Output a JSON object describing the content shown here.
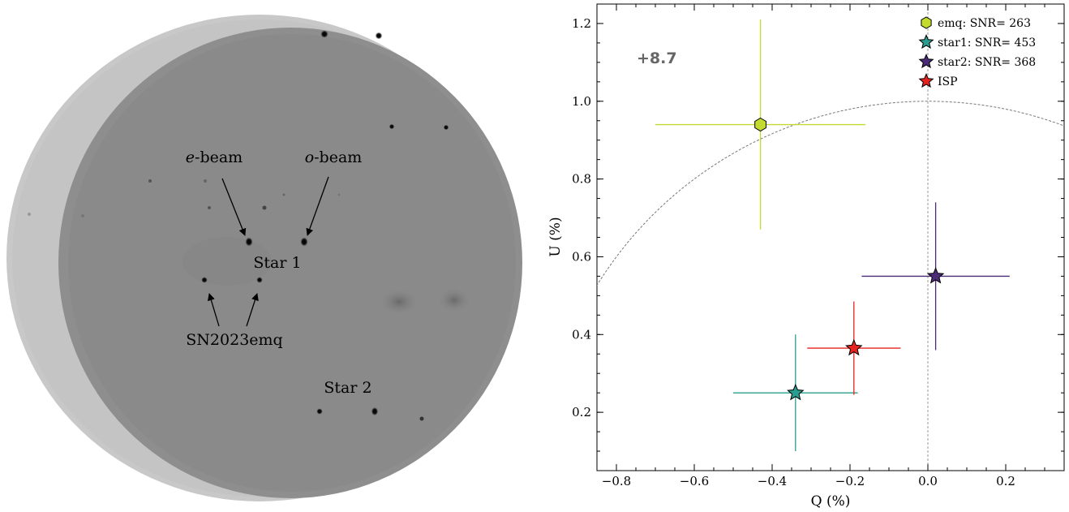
{
  "image_panel": {
    "labels": {
      "e_beam_prefix": "e",
      "e_beam_suffix": "-beam",
      "o_beam_prefix": "o",
      "o_beam_suffix": "-beam",
      "star1": "Star 1",
      "sn": "SN2023emq",
      "star2": "Star 2"
    }
  },
  "chart_data": {
    "type": "scatter",
    "xlabel": "Q (%)",
    "ylabel": "U (%)",
    "xlim": [
      -0.85,
      0.35
    ],
    "ylim": [
      0.05,
      1.25
    ],
    "xticks": [
      -0.8,
      -0.6,
      -0.4,
      -0.2,
      0.0,
      0.2
    ],
    "xtick_labels": [
      "−0.8",
      "−0.6",
      "−0.4",
      "−0.2",
      "0.0",
      "0.2"
    ],
    "yticks": [
      0.2,
      0.4,
      0.6,
      0.8,
      1.0,
      1.2
    ],
    "ytick_labels": [
      "0.2",
      "0.4",
      "0.6",
      "0.8",
      "1.0",
      "1.2"
    ],
    "annotation": "+8.7",
    "grid": false,
    "legend_position": "top-right",
    "reference_circle_radius": 1.0,
    "series": [
      {
        "name": "emq: SNR= 263",
        "marker": "hexagon",
        "color": "#c2db2e",
        "x": -0.43,
        "y": 0.94,
        "xerr": 0.27,
        "yerr": 0.27
      },
      {
        "name": "star1: SNR= 453",
        "marker": "star",
        "color": "#2a9d8f",
        "x": -0.34,
        "y": 0.25,
        "xerr": 0.16,
        "yerr": 0.15
      },
      {
        "name": "star2: SNR= 368",
        "marker": "star",
        "color": "#4b2a78",
        "x": 0.02,
        "y": 0.55,
        "xerr": 0.19,
        "yerr": 0.19
      },
      {
        "name": "ISP",
        "marker": "star",
        "color": "#e8231f",
        "x": -0.19,
        "y": 0.365,
        "xerr": 0.12,
        "yerr": 0.12
      }
    ]
  }
}
